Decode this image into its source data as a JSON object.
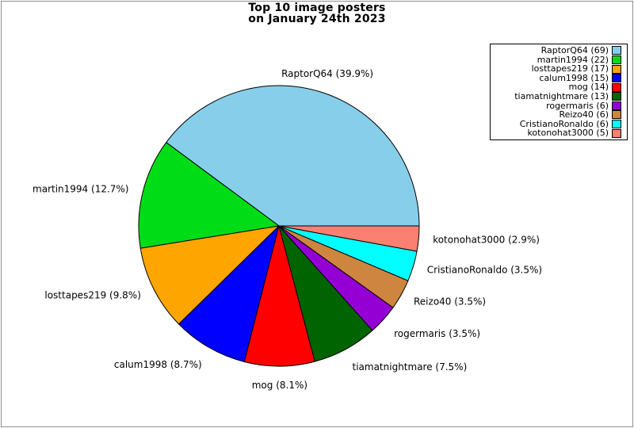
{
  "title": {
    "line1": "Top 10 image posters",
    "line2": "on January 24th 2023"
  },
  "chart_data": {
    "type": "pie",
    "title": "Top 10 image posters on January 24th 2023",
    "legend_position": "upper-right",
    "start_angle_deg": 0,
    "direction": "counterclockwise",
    "background_color": "#ffffff",
    "slice_outline_color": "#000000",
    "figure_border_color": "#8e8e8e",
    "series": [
      {
        "label": "RaptorQ64",
        "count": 69,
        "percent": 39.9,
        "color": "#87ceeb",
        "slice_label": "RaptorQ64 (39.9%)",
        "legend_label": "RaptorQ64 (69)"
      },
      {
        "label": "martin1994",
        "count": 22,
        "percent": 12.7,
        "color": "#00dd16",
        "slice_label": "martin1994 (12.7%)",
        "legend_label": "martin1994 (22)"
      },
      {
        "label": "losttapes219",
        "count": 17,
        "percent": 9.8,
        "color": "#ffa500",
        "slice_label": "losttapes219 (9.8%)",
        "legend_label": "losttapes219 (17)"
      },
      {
        "label": "calum1998",
        "count": 15,
        "percent": 8.7,
        "color": "#0000ff",
        "slice_label": "calum1998 (8.7%)",
        "legend_label": "calum1998 (15)"
      },
      {
        "label": "mog",
        "count": 14,
        "percent": 8.1,
        "color": "#ff0000",
        "slice_label": "mog (8.1%)",
        "legend_label": "mog (14)"
      },
      {
        "label": "tiamatnightmare",
        "count": 13,
        "percent": 7.5,
        "color": "#006400",
        "slice_label": "tiamatnightmare (7.5%)",
        "legend_label": "tiamatnightmare (13)"
      },
      {
        "label": "rogermaris",
        "count": 6,
        "percent": 3.5,
        "color": "#9400d3",
        "slice_label": "rogermaris (3.5%)",
        "legend_label": "rogermaris (6)"
      },
      {
        "label": "Reizo40",
        "count": 6,
        "percent": 3.5,
        "color": "#cd853f",
        "slice_label": "Reizo40 (3.5%)",
        "legend_label": "Reizo40 (6)"
      },
      {
        "label": "CristianoRonaldo",
        "count": 6,
        "percent": 3.5,
        "color": "#00ffff",
        "slice_label": "CristianoRonaldo (3.5%)",
        "legend_label": "CristianoRonaldo (6)"
      },
      {
        "label": "kotonohat3000",
        "count": 5,
        "percent": 2.9,
        "color": "#fa8072",
        "slice_label": "kotonohat3000 (2.9%)",
        "legend_label": "kotonohat3000 (5)"
      }
    ]
  }
}
